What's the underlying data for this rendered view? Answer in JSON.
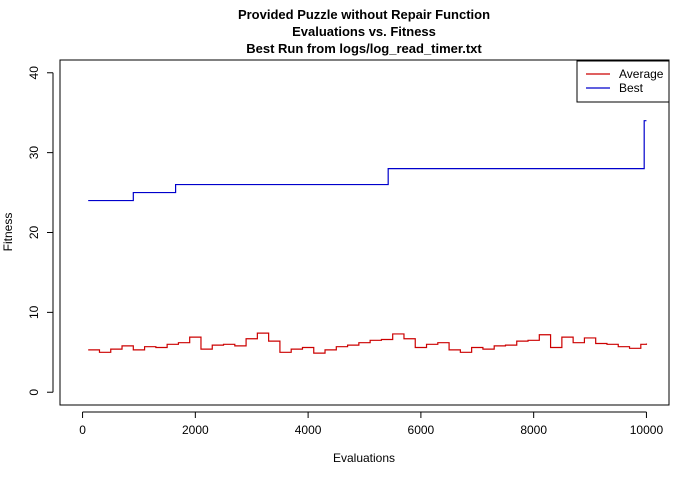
{
  "chart_data": {
    "type": "line",
    "title_lines": [
      "Provided Puzzle without Repair Function",
      "Evaluations vs. Fitness",
      "Best Run from logs/log_read_timer.txt"
    ],
    "xlabel": "Evaluations",
    "ylabel": "Fitness",
    "xlim": [
      0,
      10000
    ],
    "ylim": [
      0,
      40
    ],
    "xticks": [
      0,
      2000,
      4000,
      6000,
      8000,
      10000
    ],
    "yticks": [
      0,
      10,
      20,
      30,
      40
    ],
    "grid": false,
    "legend_position": "top-right",
    "series": [
      {
        "name": "Average",
        "color": "#cc0000",
        "x": [
          100,
          300,
          500,
          700,
          900,
          1100,
          1300,
          1500,
          1700,
          1900,
          2100,
          2300,
          2500,
          2700,
          2900,
          3100,
          3300,
          3500,
          3700,
          3900,
          4100,
          4300,
          4500,
          4700,
          4900,
          5100,
          5300,
          5500,
          5700,
          5900,
          6100,
          6300,
          6500,
          6700,
          6900,
          7100,
          7300,
          7500,
          7700,
          7900,
          8100,
          8300,
          8500,
          8700,
          8900,
          9100,
          9300,
          9500,
          9700,
          9900,
          10000
        ],
        "y": [
          5.3,
          5.0,
          5.4,
          5.8,
          5.3,
          5.7,
          5.6,
          6.0,
          6.2,
          6.9,
          5.4,
          5.9,
          6.0,
          5.8,
          6.7,
          7.4,
          6.4,
          5.0,
          5.4,
          5.6,
          4.9,
          5.3,
          5.7,
          5.9,
          6.2,
          6.5,
          6.6,
          7.3,
          6.7,
          5.6,
          6.0,
          6.2,
          5.3,
          5.0,
          5.6,
          5.4,
          5.8,
          5.9,
          6.4,
          6.5,
          7.2,
          5.6,
          6.9,
          6.2,
          6.8,
          6.1,
          6.0,
          5.7,
          5.5,
          6.0,
          6.1
        ]
      },
      {
        "name": "Best",
        "color": "#0000cc",
        "step": true,
        "x": [
          100,
          900,
          1650,
          5420,
          9960,
          10000
        ],
        "y": [
          24,
          25,
          26,
          28,
          34,
          34
        ]
      }
    ]
  }
}
